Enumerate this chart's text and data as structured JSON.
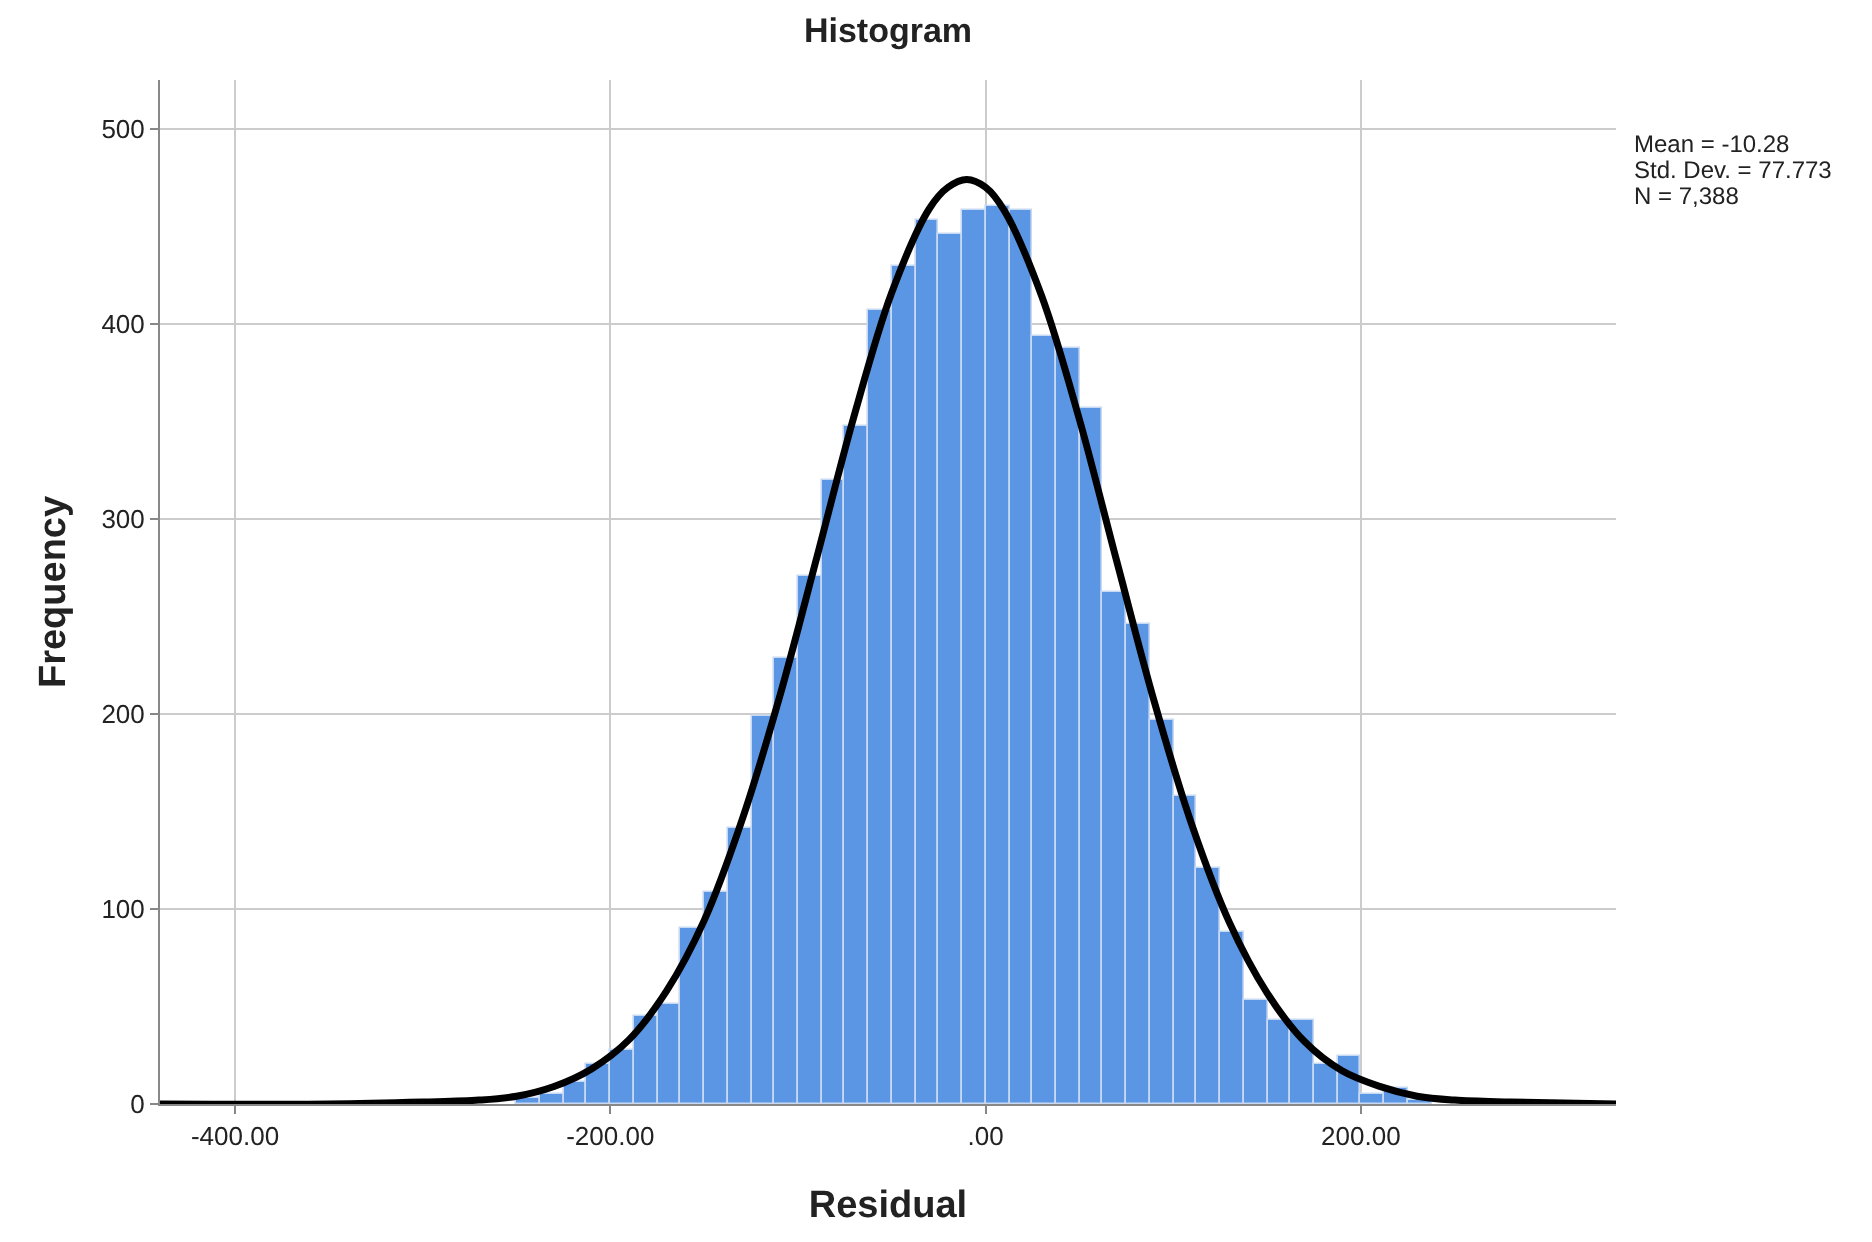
{
  "chart_data": {
    "type": "histogram",
    "title": "Histogram",
    "xlabel": "Residual",
    "ylabel": "Frequency",
    "bins": [
      -250,
      -237.5,
      -225,
      -212.5,
      -200,
      -187.5,
      -175,
      -162.5,
      -150,
      -137.5,
      -125,
      -112.5,
      -100,
      -87.5,
      -75,
      -62.5,
      -50,
      -37.5,
      -25,
      -12.5,
      0,
      12.5,
      25,
      37.5,
      50,
      62.5,
      75,
      87.5,
      100,
      112.5,
      125,
      137.5,
      150,
      162.5,
      175,
      187.5,
      200,
      212.5,
      225,
      237.5
    ],
    "values": [
      3,
      5,
      11,
      21,
      28,
      45,
      51,
      90,
      109,
      142,
      199,
      229,
      271,
      320,
      348,
      407,
      430,
      453,
      446,
      458,
      460,
      458,
      394,
      388,
      357,
      262,
      246,
      197,
      158,
      121,
      88,
      53,
      43,
      43,
      21,
      25,
      5,
      8,
      2
    ],
    "color": "#5a96e3",
    "series": [
      {
        "type": "line",
        "color": "#000000",
        "x": [
          -440,
          -350,
          -300,
          -270,
          -250,
          -230,
          -210,
          -190,
          -170,
          -150,
          -130,
          -110,
          -90,
          -70,
          -50,
          -30,
          -20,
          -10,
          0,
          10,
          30,
          50,
          70,
          90,
          110,
          130,
          150,
          170,
          190,
          210,
          230,
          250,
          280,
          336
        ],
        "values": [
          0,
          0,
          1,
          2,
          4,
          9,
          18,
          33,
          58,
          94,
          145,
          208,
          280,
          353,
          416,
          459,
          470,
          474,
          470,
          458,
          414,
          351,
          278,
          206,
          143,
          93,
          57,
          32,
          17,
          9,
          4,
          2,
          1,
          0
        ]
      }
    ],
    "xlim": [
      -440,
      336
    ],
    "ylim": [
      0,
      525
    ],
    "xticks": [
      {
        "value": -400,
        "label": "-400.00"
      },
      {
        "value": -200,
        "label": "-200.00"
      },
      {
        "value": 0,
        "label": ".00"
      },
      {
        "value": 200,
        "label": "200.00"
      }
    ],
    "yticks": [
      0,
      100,
      200,
      300,
      400,
      500
    ],
    "grid": true,
    "annotations": [
      "Mean = -10.28",
      "Std. Dev. = 77.773",
      "N = 7,388"
    ]
  }
}
